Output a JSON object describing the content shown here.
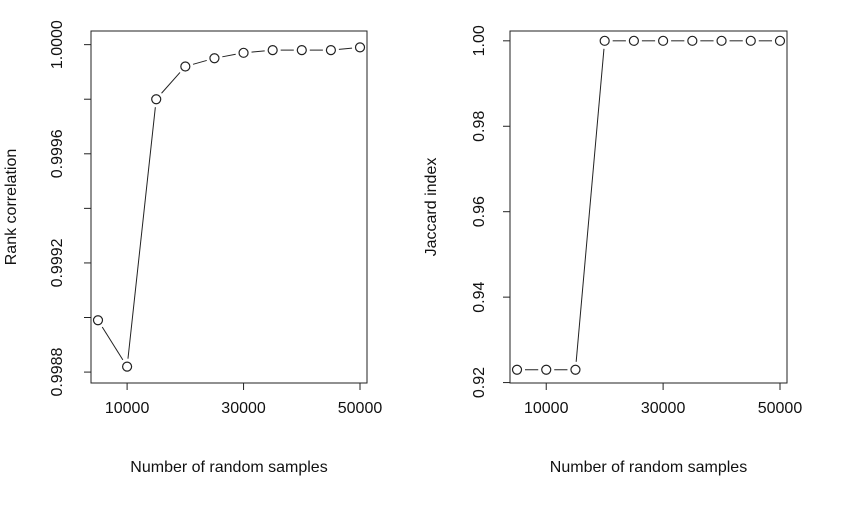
{
  "chart_data": [
    {
      "type": "scatter",
      "line_style": "points-connected-by-segments",
      "marker": "open-circle",
      "title": "",
      "xlabel": "Number of random samples",
      "ylabel": "Rank correlation",
      "x": [
        5000,
        10000,
        15000,
        20000,
        25000,
        30000,
        35000,
        40000,
        45000,
        50000
      ],
      "y": [
        0.99899,
        0.99882,
        0.9998,
        0.99992,
        0.99995,
        0.99997,
        0.99998,
        0.99998,
        0.99998,
        0.99999
      ],
      "xlim": [
        3800,
        51200
      ],
      "ylim": [
        0.99876,
        1.00005
      ],
      "xticks": [
        10000,
        30000,
        50000
      ],
      "xtick_labels": [
        "10000",
        "30000",
        "50000"
      ],
      "yticks": [
        0.9988,
        0.999,
        0.9992,
        0.9994,
        0.9996,
        0.9998,
        1.0
      ],
      "ytick_labels": [
        "0.9988",
        "",
        "0.9992",
        "",
        "0.9996",
        "",
        "1.0000"
      ],
      "grid": false,
      "legend": "none"
    },
    {
      "type": "scatter",
      "line_style": "points-connected-by-segments",
      "marker": "open-circle",
      "title": "",
      "xlabel": "Number of random samples",
      "ylabel": "Jaccard index",
      "x": [
        5000,
        10000,
        15000,
        20000,
        25000,
        30000,
        35000,
        40000,
        45000,
        50000
      ],
      "y": [
        0.923,
        0.923,
        0.923,
        1.0,
        1.0,
        1.0,
        1.0,
        1.0,
        1.0,
        1.0
      ],
      "xlim": [
        3800,
        51200
      ],
      "ylim": [
        0.9199,
        1.0023
      ],
      "xticks": [
        10000,
        30000,
        50000
      ],
      "xtick_labels": [
        "10000",
        "30000",
        "50000"
      ],
      "yticks": [
        0.92,
        0.94,
        0.96,
        0.98,
        1.0
      ],
      "ytick_labels": [
        "0.92",
        "0.94",
        "0.96",
        "0.98",
        "1.00"
      ],
      "grid": false,
      "legend": "none"
    }
  ]
}
